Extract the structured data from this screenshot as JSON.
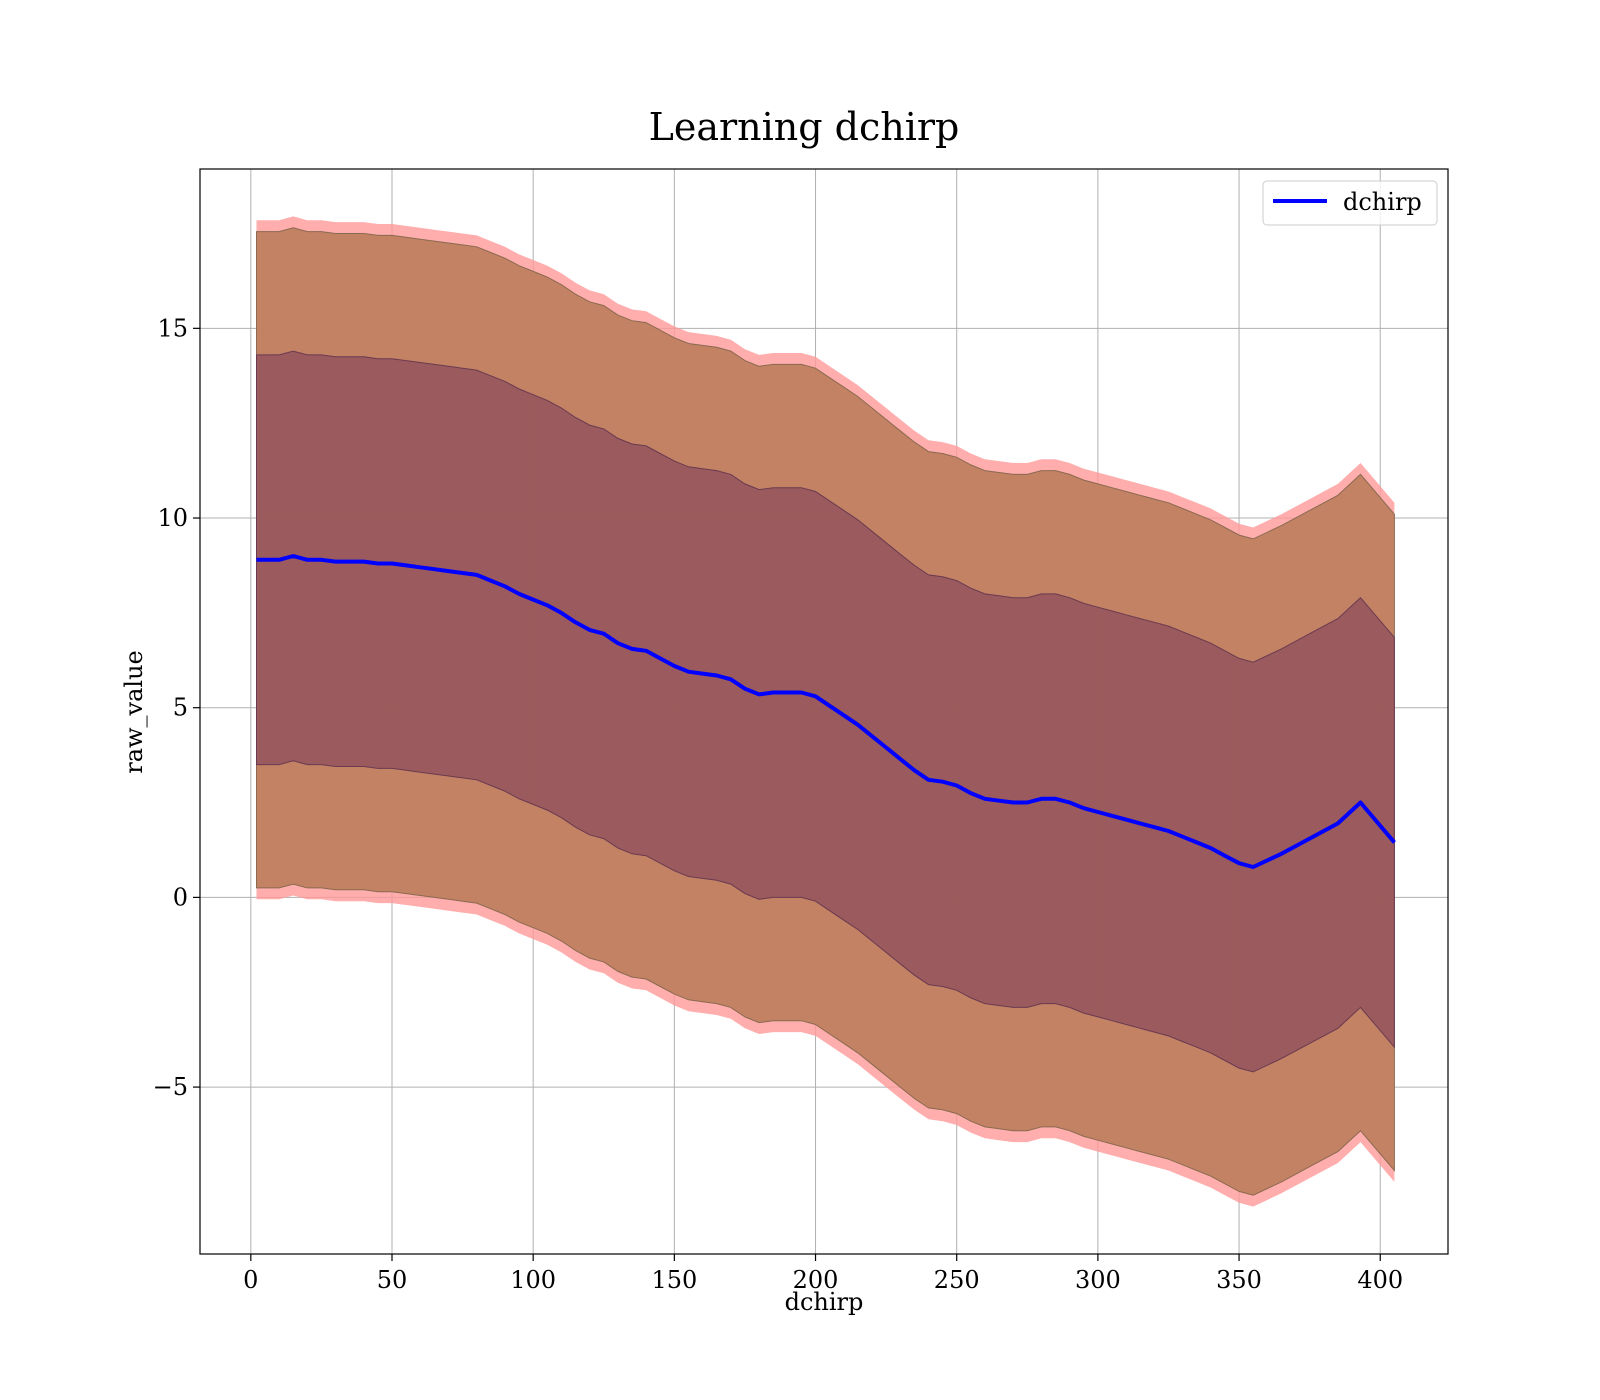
{
  "chart_data": {
    "type": "line",
    "title": "Learning dchirp",
    "xlabel": "dchirp",
    "ylabel": "raw_value",
    "xlim": [
      -18,
      424
    ],
    "ylim": [
      -9.4,
      19.2
    ],
    "xticks": [
      0,
      50,
      100,
      150,
      200,
      250,
      300,
      350,
      400
    ],
    "xtick_labels": [
      "0",
      "50",
      "100",
      "150",
      "200",
      "250",
      "300",
      "350",
      "400"
    ],
    "yticks": [
      -5,
      0,
      5,
      10,
      15
    ],
    "ytick_labels": [
      "−5",
      "0",
      "5",
      "10",
      "15"
    ],
    "grid": true,
    "legend_position": "top-right",
    "colors": {
      "line": "#0000ff",
      "band_outer_1": "#ff9999",
      "band_outer_2": "#c08060",
      "band_inner": "#804058",
      "grid": "#b0b0b0"
    },
    "series": [
      {
        "name": "dchirp",
        "x": [
          2,
          10,
          15,
          20,
          25,
          30,
          35,
          40,
          45,
          50,
          55,
          60,
          65,
          70,
          75,
          80,
          85,
          90,
          95,
          100,
          105,
          110,
          115,
          120,
          125,
          130,
          135,
          140,
          145,
          150,
          155,
          160,
          165,
          170,
          175,
          180,
          185,
          190,
          195,
          200,
          205,
          210,
          215,
          220,
          225,
          230,
          235,
          240,
          245,
          250,
          255,
          260,
          265,
          270,
          275,
          280,
          285,
          290,
          295,
          300,
          305,
          310,
          315,
          320,
          325,
          330,
          335,
          340,
          345,
          350,
          355,
          365,
          375,
          385,
          393,
          405
        ],
        "y": [
          8.9,
          8.9,
          9.0,
          8.9,
          8.9,
          8.85,
          8.85,
          8.85,
          8.8,
          8.8,
          8.75,
          8.7,
          8.65,
          8.6,
          8.55,
          8.5,
          8.35,
          8.2,
          8.0,
          7.85,
          7.7,
          7.5,
          7.25,
          7.05,
          6.95,
          6.7,
          6.55,
          6.5,
          6.3,
          6.1,
          5.95,
          5.9,
          5.85,
          5.75,
          5.5,
          5.35,
          5.4,
          5.4,
          5.4,
          5.3,
          5.05,
          4.8,
          4.55,
          4.25,
          3.95,
          3.65,
          3.35,
          3.1,
          3.05,
          2.95,
          2.75,
          2.6,
          2.55,
          2.5,
          2.5,
          2.6,
          2.6,
          2.5,
          2.35,
          2.25,
          2.15,
          2.05,
          1.95,
          1.85,
          1.75,
          1.6,
          1.45,
          1.3,
          1.1,
          0.9,
          0.8,
          1.15,
          1.55,
          1.95,
          2.5,
          1.45
        ]
      }
    ],
    "bands": {
      "std1_half_width": [
        5.4,
        5.4,
        5.4,
        5.4,
        5.4,
        5.4,
        5.4,
        5.4,
        5.4,
        5.4,
        5.4,
        5.4,
        5.4,
        5.4,
        5.4,
        5.4,
        5.4,
        5.4,
        5.4,
        5.4,
        5.4,
        5.4,
        5.4,
        5.4,
        5.4,
        5.4,
        5.4,
        5.4,
        5.4,
        5.4,
        5.4,
        5.4,
        5.4,
        5.4,
        5.4,
        5.4,
        5.4,
        5.4,
        5.4,
        5.4,
        5.4,
        5.4,
        5.4,
        5.4,
        5.4,
        5.4,
        5.4,
        5.4,
        5.4,
        5.4,
        5.4,
        5.4,
        5.4,
        5.4,
        5.4,
        5.4,
        5.4,
        5.4,
        5.4,
        5.4,
        5.4,
        5.4,
        5.4,
        5.4,
        5.4,
        5.4,
        5.4,
        5.4,
        5.4,
        5.4,
        5.4,
        5.4,
        5.4,
        5.4,
        5.4,
        5.4
      ],
      "outer_half_width": [
        8.65,
        8.65,
        8.65,
        8.65,
        8.65,
        8.65,
        8.65,
        8.65,
        8.65,
        8.65,
        8.65,
        8.65,
        8.65,
        8.65,
        8.65,
        8.65,
        8.65,
        8.65,
        8.65,
        8.65,
        8.65,
        8.65,
        8.65,
        8.65,
        8.65,
        8.65,
        8.65,
        8.65,
        8.65,
        8.65,
        8.65,
        8.65,
        8.65,
        8.65,
        8.65,
        8.65,
        8.65,
        8.65,
        8.65,
        8.65,
        8.65,
        8.65,
        8.65,
        8.65,
        8.65,
        8.65,
        8.65,
        8.65,
        8.65,
        8.65,
        8.65,
        8.65,
        8.65,
        8.65,
        8.65,
        8.65,
        8.65,
        8.65,
        8.65,
        8.65,
        8.65,
        8.65,
        8.65,
        8.65,
        8.65,
        8.65,
        8.65,
        8.65,
        8.65,
        8.65,
        8.65,
        8.65,
        8.65,
        8.65,
        8.65,
        8.65
      ],
      "extreme_half_width": [
        8.95,
        8.95,
        8.95,
        8.95,
        8.95,
        8.95,
        8.95,
        8.95,
        8.95,
        8.95,
        8.95,
        8.95,
        8.95,
        8.95,
        8.95,
        8.95,
        8.95,
        8.95,
        8.95,
        8.95,
        8.95,
        8.95,
        8.95,
        8.95,
        8.95,
        8.95,
        8.95,
        8.95,
        8.95,
        8.95,
        8.95,
        8.95,
        8.95,
        8.95,
        8.95,
        8.95,
        8.95,
        8.95,
        8.95,
        8.95,
        8.95,
        8.95,
        8.95,
        8.95,
        8.95,
        8.95,
        8.95,
        8.95,
        8.95,
        8.95,
        8.95,
        8.95,
        8.95,
        8.95,
        8.95,
        8.95,
        8.95,
        8.95,
        8.95,
        8.95,
        8.95,
        8.95,
        8.95,
        8.95,
        8.95,
        8.95,
        8.95,
        8.95,
        8.95,
        8.95,
        8.95,
        8.95,
        8.95,
        8.95,
        8.95,
        8.95
      ]
    }
  }
}
